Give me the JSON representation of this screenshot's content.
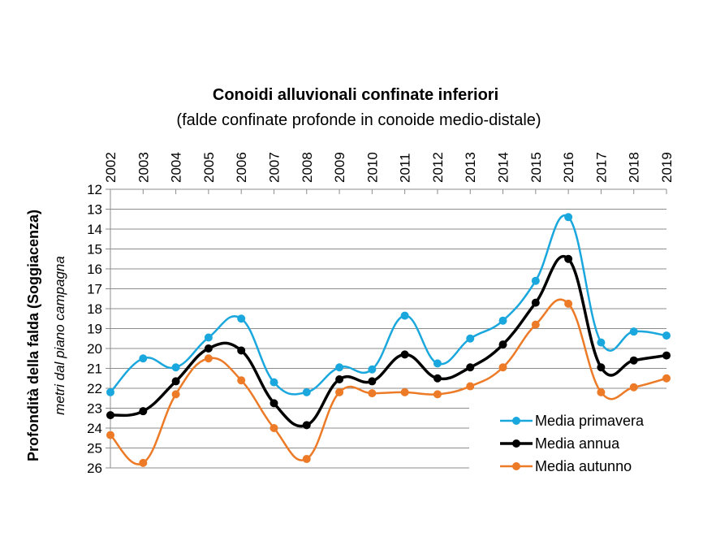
{
  "chart_data": {
    "type": "line",
    "title": "Conoidi alluvionali  confinate inferiori",
    "subtitle": "(falde confinate  profonde in conoide medio-distale)",
    "ylabel": "Profondità della falda (Soggiacenza)",
    "ylabel_sub": "metri dal piano campagna",
    "xlabel": "",
    "x": [
      "2002",
      "2003",
      "2004",
      "2005",
      "2006",
      "2007",
      "2008",
      "2009",
      "2010",
      "2011",
      "2012",
      "2013",
      "2014",
      "2015",
      "2016",
      "2017",
      "2018",
      "2019"
    ],
    "ylim": [
      12,
      26
    ],
    "y_inverted": true,
    "y_ticks": [
      12,
      13,
      14,
      15,
      16,
      17,
      18,
      19,
      20,
      21,
      22,
      23,
      24,
      25,
      26
    ],
    "x_axis_position": "top",
    "grid": true,
    "legend_position": "bottom-right",
    "series": [
      {
        "name": "Media primavera",
        "color": "#1aa7dd",
        "values": [
          22.2,
          20.5,
          20.95,
          19.45,
          18.5,
          21.7,
          22.2,
          20.95,
          21.05,
          18.35,
          20.75,
          19.5,
          18.6,
          16.6,
          13.4,
          19.7,
          19.15,
          19.35
        ]
      },
      {
        "name": "Media annua",
        "color": "#000000",
        "values": [
          23.35,
          23.15,
          21.65,
          20.0,
          20.1,
          22.75,
          23.85,
          21.55,
          21.65,
          20.3,
          21.5,
          20.95,
          19.8,
          17.7,
          15.5,
          20.95,
          20.6,
          20.35
        ]
      },
      {
        "name": "Media autunno",
        "color": "#ec7a26",
        "values": [
          24.35,
          25.75,
          22.3,
          20.5,
          21.6,
          24.0,
          25.55,
          22.2,
          22.25,
          22.2,
          22.3,
          21.9,
          20.95,
          18.8,
          17.75,
          22.2,
          21.95,
          21.5
        ]
      }
    ]
  }
}
